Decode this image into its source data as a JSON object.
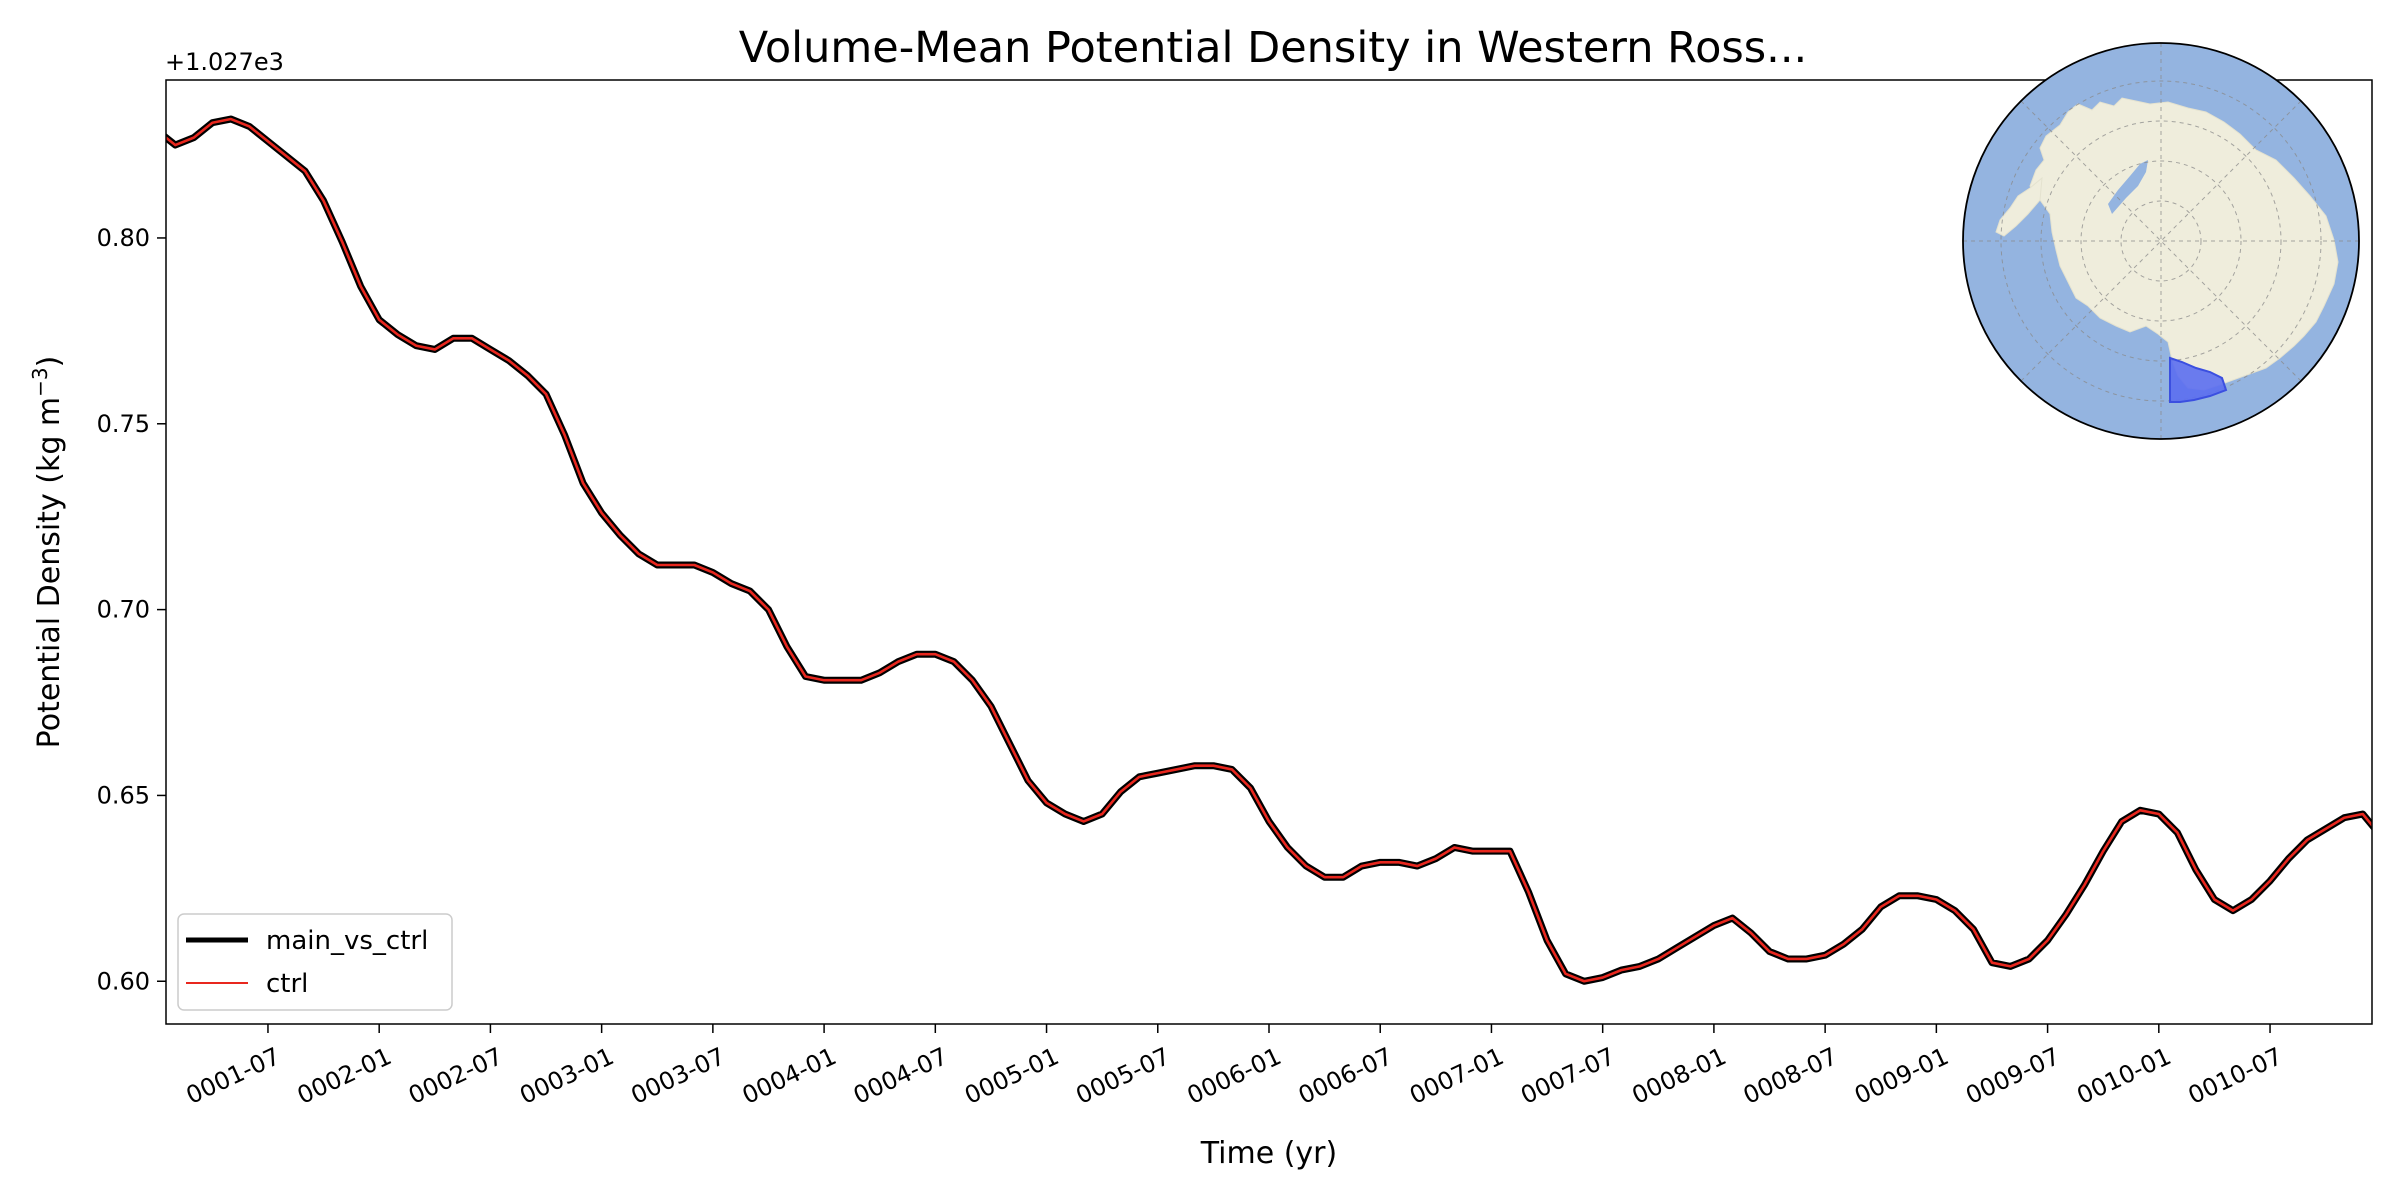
{
  "chart_data": {
    "type": "line",
    "title": "Volume-Mean Potential Density in Western Ross...",
    "xlabel": "Time (yr)",
    "ylabel": "Potential Density (kg m",
    "ylabel_exponent": "−3",
    "ylabel_close": ")",
    "y_offset_label": "+1.027e3",
    "ylim": [
      0.5885,
      0.8425
    ],
    "yticks": [
      0.6,
      0.65,
      0.7,
      0.75,
      0.8
    ],
    "ytick_labels": [
      "0.60",
      "0.65",
      "0.70",
      "0.75",
      "0.80"
    ],
    "x_unit": "months since 0001-01",
    "xlim": [
      0.5,
      119.5
    ],
    "xticks": [
      6,
      12,
      18,
      24,
      30,
      36,
      42,
      48,
      54,
      60,
      66,
      72,
      78,
      84,
      90,
      96,
      102,
      108,
      114
    ],
    "xtick_labels": [
      "0001-07",
      "0002-01",
      "0002-07",
      "0003-01",
      "0003-07",
      "0004-01",
      "0004-07",
      "0005-01",
      "0005-07",
      "0006-01",
      "0006-07",
      "0007-01",
      "0007-07",
      "0008-01",
      "0008-07",
      "0009-01",
      "0009-07",
      "0010-01",
      "0010-07"
    ],
    "legend_location": "lower-left",
    "grid": false,
    "series": [
      {
        "name": "main_vs_ctrl",
        "color": "#000000",
        "values": [
          0.829,
          0.825,
          0.827,
          0.831,
          0.832,
          0.83,
          0.826,
          0.822,
          0.818,
          0.81,
          0.799,
          0.787,
          0.778,
          0.774,
          0.771,
          0.77,
          0.773,
          0.773,
          0.77,
          0.767,
          0.763,
          0.758,
          0.747,
          0.734,
          0.726,
          0.72,
          0.715,
          0.712,
          0.712,
          0.712,
          0.71,
          0.707,
          0.705,
          0.7,
          0.69,
          0.682,
          0.681,
          0.681,
          0.681,
          0.683,
          0.686,
          0.688,
          0.688,
          0.686,
          0.681,
          0.674,
          0.664,
          0.654,
          0.648,
          0.645,
          0.643,
          0.645,
          0.651,
          0.655,
          0.656,
          0.657,
          0.658,
          0.658,
          0.657,
          0.652,
          0.643,
          0.636,
          0.631,
          0.628,
          0.628,
          0.631,
          0.632,
          0.632,
          0.631,
          0.633,
          0.636,
          0.635,
          0.635,
          0.635,
          0.624,
          0.611,
          0.602,
          0.6,
          0.601,
          0.603,
          0.604,
          0.606,
          0.609,
          0.612,
          0.615,
          0.617,
          0.613,
          0.608,
          0.606,
          0.606,
          0.607,
          0.61,
          0.614,
          0.62,
          0.623,
          0.623,
          0.622,
          0.619,
          0.614,
          0.605,
          0.604,
          0.606,
          0.611,
          0.618,
          0.626,
          0.635,
          0.643,
          0.646,
          0.645,
          0.64,
          0.63,
          0.622,
          0.619,
          0.622,
          0.627,
          0.633,
          0.638,
          0.641,
          0.644,
          0.645,
          0.639
        ]
      },
      {
        "name": "ctrl",
        "color": "#e8271e",
        "values": [
          0.829,
          0.825,
          0.827,
          0.831,
          0.832,
          0.83,
          0.826,
          0.822,
          0.818,
          0.81,
          0.799,
          0.787,
          0.778,
          0.774,
          0.771,
          0.77,
          0.773,
          0.773,
          0.77,
          0.767,
          0.763,
          0.758,
          0.747,
          0.734,
          0.726,
          0.72,
          0.715,
          0.712,
          0.712,
          0.712,
          0.71,
          0.707,
          0.705,
          0.7,
          0.69,
          0.682,
          0.681,
          0.681,
          0.681,
          0.683,
          0.686,
          0.688,
          0.688,
          0.686,
          0.681,
          0.674,
          0.664,
          0.654,
          0.648,
          0.645,
          0.643,
          0.645,
          0.651,
          0.655,
          0.656,
          0.657,
          0.658,
          0.658,
          0.657,
          0.652,
          0.643,
          0.636,
          0.631,
          0.628,
          0.628,
          0.631,
          0.632,
          0.632,
          0.631,
          0.633,
          0.636,
          0.635,
          0.635,
          0.635,
          0.624,
          0.611,
          0.602,
          0.6,
          0.601,
          0.603,
          0.604,
          0.606,
          0.609,
          0.612,
          0.615,
          0.617,
          0.613,
          0.608,
          0.606,
          0.606,
          0.607,
          0.61,
          0.614,
          0.62,
          0.623,
          0.623,
          0.622,
          0.619,
          0.614,
          0.605,
          0.604,
          0.606,
          0.611,
          0.618,
          0.626,
          0.635,
          0.643,
          0.646,
          0.645,
          0.64,
          0.63,
          0.622,
          0.619,
          0.622,
          0.627,
          0.633,
          0.638,
          0.641,
          0.644,
          0.645,
          0.639
        ]
      }
    ],
    "inset_map": {
      "projection": "south-polar-stereographic",
      "ocean_color": "#94b4e0",
      "land_color": "#efeddc",
      "region_color": "#5b6ef0",
      "region": "Western Ross Sea"
    }
  }
}
